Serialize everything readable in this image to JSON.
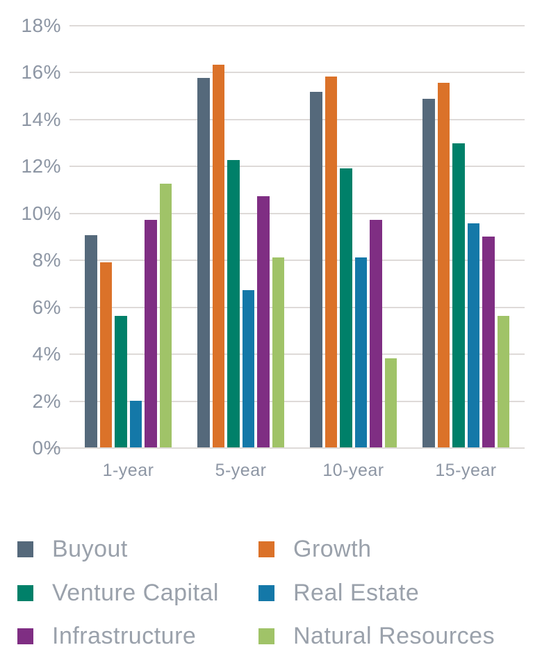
{
  "chart_data": {
    "type": "bar",
    "title": "",
    "xlabel": "",
    "ylabel": "",
    "categories": [
      "1-year",
      "5-year",
      "10-year",
      "15-year"
    ],
    "series": [
      {
        "name": "Buyout",
        "color": "#55697b",
        "values": [
          9.05,
          15.75,
          15.15,
          14.85
        ]
      },
      {
        "name": "Growth",
        "color": "#db7229",
        "values": [
          7.9,
          16.3,
          15.8,
          15.55
        ]
      },
      {
        "name": "Venture Capital",
        "color": "#008069",
        "values": [
          5.6,
          12.25,
          11.9,
          12.95
        ]
      },
      {
        "name": "Real Estate",
        "color": "#1478a8",
        "values": [
          2.0,
          6.7,
          8.1,
          9.55
        ]
      },
      {
        "name": "Infrastructure",
        "color": "#7f2e83",
        "values": [
          9.7,
          10.7,
          9.7,
          9.0
        ]
      },
      {
        "name": "Natural Resources",
        "color": "#a0c368",
        "values": [
          11.25,
          8.1,
          3.8,
          5.6
        ]
      }
    ],
    "ylim": [
      0,
      18
    ],
    "ytick_step": 2,
    "y_tick_labels": [
      "18%",
      "16%",
      "14%",
      "12%",
      "10%",
      "8%",
      "6%",
      "4%",
      "2%",
      "0%"
    ],
    "grid": "horizontal",
    "legend_position": "bottom"
  },
  "style_colors": {
    "background": "#ffffff",
    "gridline": "#dedad8",
    "axis_label": "#8d96a4",
    "legend_label": "#9aa1ab"
  }
}
